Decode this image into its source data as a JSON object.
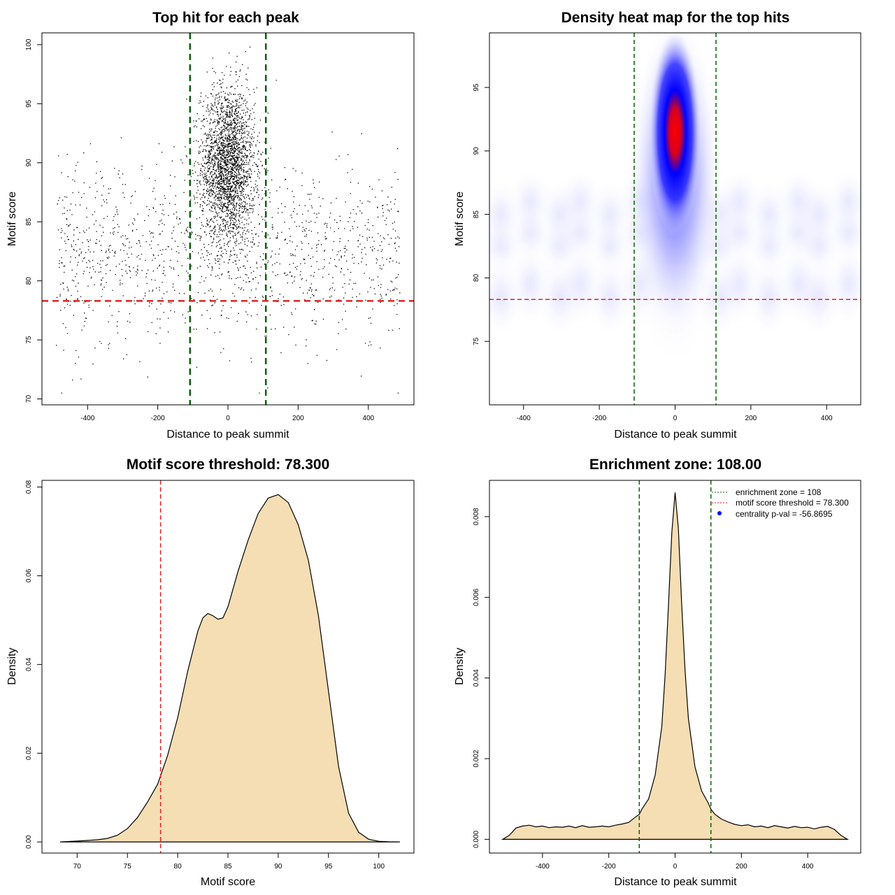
{
  "colors": {
    "zone_line": "#006400",
    "threshold_line": "#dd2222",
    "density_fill": "#f5deb3",
    "heat_low": "#ffffff",
    "heat_mid": "#0000ff",
    "heat_high": "#ff0000",
    "points": "#000000"
  },
  "chart_data": [
    {
      "type": "scatter",
      "title": "Top hit for each peak",
      "xlabel": "Distance to peak summit",
      "ylabel": "Motif score",
      "xlim": [
        -530,
        530
      ],
      "ylim": [
        69.5,
        101
      ],
      "xticks": [
        -400,
        -200,
        0,
        200,
        400
      ],
      "yticks": [
        70,
        75,
        80,
        85,
        90,
        95,
        100
      ],
      "x_tick_labels": [
        "-400",
        "-200",
        "0",
        "200",
        "400"
      ],
      "y_tick_labels": [
        "70",
        "75",
        "80",
        "85",
        "90",
        "95",
        "100"
      ],
      "vlines": [
        -108,
        108
      ],
      "hline": 78.3,
      "point_groups": [
        {
          "name": "central cluster",
          "count": 2600,
          "x_center": 0,
          "x_spread": 38,
          "y_center": 89.8,
          "y_spread": 3.3
        },
        {
          "name": "background",
          "count": 1300,
          "x_range": [
            -490,
            490
          ],
          "y_center": 82.5,
          "y_spread": 3.8
        }
      ]
    },
    {
      "type": "heatmap",
      "title": "Density heat map for the top hits",
      "xlabel": "Distance to peak summit",
      "ylabel": "Motif score",
      "xlim": [
        -490,
        490
      ],
      "ylim": [
        70,
        99.3
      ],
      "xticks": [
        -400,
        -200,
        0,
        200,
        400
      ],
      "yticks": [
        75,
        80,
        85,
        90,
        95
      ],
      "x_tick_labels": [
        "-400",
        "-200",
        "0",
        "200",
        "400"
      ],
      "y_tick_labels": [
        "75",
        "80",
        "85",
        "90",
        "95"
      ],
      "vlines": [
        -108,
        108
      ],
      "hline": 78.3,
      "peak": {
        "x": 0,
        "y": 91.5
      }
    },
    {
      "type": "area",
      "title": "Motif score threshold: 78.300",
      "xlabel": "Motif score",
      "ylabel": "Density",
      "xlim": [
        66.5,
        103.5
      ],
      "ylim": [
        -0.0025,
        0.0815
      ],
      "xticks": [
        70,
        75,
        80,
        85,
        90,
        95,
        100
      ],
      "yticks": [
        0,
        0.02,
        0.04,
        0.06,
        0.08
      ],
      "x_tick_labels": [
        "70",
        "75",
        "80",
        "85",
        "90",
        "95",
        "100"
      ],
      "y_tick_labels": [
        "0.00",
        "0.02",
        "0.04",
        "0.06",
        "0.08"
      ],
      "vline": 78.3,
      "x": [
        68.3,
        70,
        72,
        73,
        74,
        75,
        76,
        77,
        78,
        79,
        80,
        81,
        82,
        82.5,
        83,
        83.5,
        84,
        84.5,
        85,
        86,
        87,
        88,
        89,
        90,
        91,
        92,
        93,
        94,
        95,
        96,
        97,
        98,
        99,
        100,
        101,
        102.1
      ],
      "values": [
        0,
        0.0002,
        0.0005,
        0.0008,
        0.0015,
        0.003,
        0.0055,
        0.009,
        0.013,
        0.0195,
        0.028,
        0.0385,
        0.0475,
        0.0505,
        0.0515,
        0.051,
        0.0502,
        0.0505,
        0.053,
        0.061,
        0.068,
        0.074,
        0.0775,
        0.0783,
        0.0765,
        0.0715,
        0.0635,
        0.051,
        0.034,
        0.017,
        0.0065,
        0.0022,
        0.0006,
        0.00015,
        4e-05,
        0
      ]
    },
    {
      "type": "area",
      "title": "Enrichment zone: 108.00",
      "xlabel": "Distance to peak summit",
      "ylabel": "Density",
      "xlim": [
        -560,
        560
      ],
      "ylim": [
        -0.00034,
        0.0089
      ],
      "xticks": [
        -400,
        -200,
        0,
        200,
        400
      ],
      "yticks": [
        0,
        0.002,
        0.004,
        0.006,
        0.008
      ],
      "x_tick_labels": [
        "-400",
        "-200",
        "0",
        "200",
        "400"
      ],
      "y_tick_labels": [
        "0.000",
        "0.002",
        "0.004",
        "0.006",
        "0.008"
      ],
      "vlines": [
        -108,
        108
      ],
      "x": [
        -520,
        -500,
        -480,
        -460,
        -440,
        -420,
        -400,
        -380,
        -360,
        -340,
        -320,
        -300,
        -280,
        -260,
        -240,
        -220,
        -200,
        -180,
        -160,
        -140,
        -120,
        -108,
        -100,
        -80,
        -60,
        -40,
        -30,
        -20,
        -10,
        0,
        10,
        20,
        30,
        40,
        60,
        80,
        100,
        108,
        120,
        140,
        160,
        180,
        200,
        220,
        240,
        260,
        280,
        300,
        320,
        340,
        360,
        380,
        400,
        420,
        440,
        460,
        480,
        500,
        520
      ],
      "values": [
        0,
        0.0001,
        0.00028,
        0.00033,
        0.00035,
        0.00031,
        0.00033,
        0.00029,
        0.00031,
        0.0003,
        0.00033,
        0.00029,
        0.00034,
        0.0003,
        0.00031,
        0.00033,
        0.00031,
        0.00035,
        0.00038,
        0.00042,
        0.00055,
        0.00062,
        0.00075,
        0.001,
        0.0016,
        0.0028,
        0.0041,
        0.0058,
        0.0076,
        0.0086,
        0.0077,
        0.0058,
        0.0042,
        0.003,
        0.0018,
        0.0012,
        0.0009,
        0.00075,
        0.00062,
        0.0005,
        0.00043,
        0.00037,
        0.00034,
        0.00036,
        0.00031,
        0.00033,
        0.00029,
        0.00034,
        0.00031,
        0.00028,
        0.00032,
        0.00029,
        0.0003,
        0.00026,
        0.0003,
        0.00032,
        0.00025,
        0.0001,
        0
      ]
    }
  ],
  "legend": [
    {
      "text": "enrichment zone = 108",
      "style": "dotted-line",
      "color": "#006400"
    },
    {
      "text": "motif score threshold = 78.300",
      "style": "dotted-line",
      "color": "#dd2222"
    },
    {
      "text": "centrality p-val = -56.8695",
      "style": "dot",
      "color": "#0000ff"
    }
  ]
}
